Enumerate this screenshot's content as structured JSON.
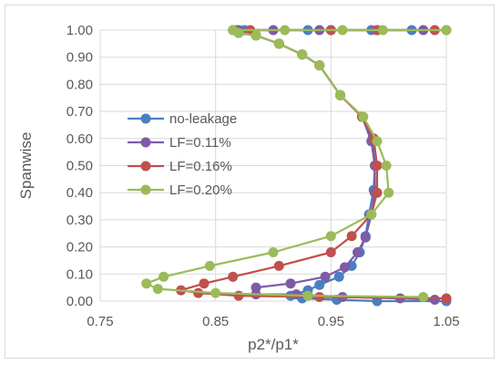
{
  "chart_data": {
    "type": "scatter",
    "title": "",
    "xlabel": "p2*/p1*",
    "ylabel": "Spanwise",
    "xlim": [
      0.75,
      1.05
    ],
    "ylim": [
      0.0,
      1.0
    ],
    "xticks": [
      "0.75",
      "0.85",
      "0.95",
      "1.05"
    ],
    "yticks": [
      "0.00",
      "0.10",
      "0.20",
      "0.30",
      "0.40",
      "0.50",
      "0.60",
      "0.70",
      "0.80",
      "0.90",
      "1.00"
    ],
    "grid": "horizontal and vertical",
    "legend_position": "center-left",
    "series": [
      {
        "name": "no-leakage",
        "color": "#4a7fc1",
        "points": [
          [
            1.05,
            0.0
          ],
          [
            0.99,
            0.0
          ],
          [
            0.955,
            0.005
          ],
          [
            0.925,
            0.01
          ],
          [
            0.915,
            0.02
          ],
          [
            0.93,
            0.04
          ],
          [
            0.94,
            0.06
          ],
          [
            0.957,
            0.09
          ],
          [
            0.968,
            0.13
          ],
          [
            0.975,
            0.18
          ],
          [
            0.98,
            0.24
          ],
          [
            0.983,
            0.32
          ],
          [
            0.987,
            0.41
          ],
          [
            0.988,
            0.5
          ],
          [
            0.986,
            0.6
          ],
          [
            0.977,
            0.68
          ],
          [
            0.958,
            0.76
          ],
          [
            0.94,
            0.87
          ],
          [
            0.925,
            0.91
          ],
          [
            0.905,
            0.95
          ],
          [
            0.885,
            0.98
          ],
          [
            0.87,
            0.99
          ],
          [
            0.868,
            1.0
          ],
          [
            0.875,
            1.0
          ],
          [
            0.93,
            1.0
          ],
          [
            0.95,
            1.0
          ],
          [
            0.985,
            1.0
          ],
          [
            1.02,
            1.0
          ],
          [
            1.05,
            1.0
          ]
        ]
      },
      {
        "name": "LF=0.11%",
        "color": "#7d5ba6",
        "points": [
          [
            1.04,
            0.005
          ],
          [
            1.01,
            0.01
          ],
          [
            0.96,
            0.015
          ],
          [
            0.92,
            0.025
          ],
          [
            0.885,
            0.025
          ],
          [
            0.885,
            0.05
          ],
          [
            0.915,
            0.065
          ],
          [
            0.945,
            0.09
          ],
          [
            0.962,
            0.125
          ],
          [
            0.973,
            0.18
          ],
          [
            0.98,
            0.235
          ],
          [
            0.985,
            0.32
          ],
          [
            0.988,
            0.4
          ],
          [
            0.988,
            0.5
          ],
          [
            0.985,
            0.59
          ],
          [
            0.977,
            0.68
          ],
          [
            0.958,
            0.76
          ],
          [
            0.94,
            0.87
          ],
          [
            0.925,
            0.91
          ],
          [
            0.905,
            0.95
          ],
          [
            0.885,
            0.98
          ],
          [
            0.87,
            0.99
          ],
          [
            0.87,
            1.0
          ],
          [
            0.9,
            1.0
          ],
          [
            0.94,
            1.0
          ],
          [
            0.99,
            1.0
          ],
          [
            1.03,
            1.0
          ]
        ]
      },
      {
        "name": "LF=0.16%",
        "color": "#c0504d",
        "points": [
          [
            1.05,
            0.01
          ],
          [
            0.94,
            0.015
          ],
          [
            0.87,
            0.02
          ],
          [
            0.835,
            0.03
          ],
          [
            0.82,
            0.04
          ],
          [
            0.84,
            0.065
          ],
          [
            0.865,
            0.09
          ],
          [
            0.905,
            0.13
          ],
          [
            0.95,
            0.18
          ],
          [
            0.968,
            0.24
          ],
          [
            0.985,
            0.32
          ],
          [
            0.99,
            0.4
          ],
          [
            0.99,
            0.5
          ],
          [
            0.987,
            0.6
          ],
          [
            0.977,
            0.68
          ],
          [
            0.958,
            0.76
          ],
          [
            0.94,
            0.87
          ],
          [
            0.925,
            0.91
          ],
          [
            0.905,
            0.95
          ],
          [
            0.885,
            0.98
          ],
          [
            0.87,
            0.99
          ],
          [
            0.865,
            1.0
          ],
          [
            0.88,
            1.0
          ],
          [
            0.95,
            1.0
          ],
          [
            0.99,
            1.0
          ],
          [
            1.04,
            1.0
          ]
        ]
      },
      {
        "name": "LF=0.20%",
        "color": "#9bbb59",
        "points": [
          [
            1.03,
            0.015
          ],
          [
            0.93,
            0.02
          ],
          [
            0.85,
            0.03
          ],
          [
            0.8,
            0.045
          ],
          [
            0.79,
            0.065
          ],
          [
            0.805,
            0.09
          ],
          [
            0.845,
            0.13
          ],
          [
            0.9,
            0.18
          ],
          [
            0.95,
            0.24
          ],
          [
            0.985,
            0.32
          ],
          [
            1.0,
            0.4
          ],
          [
            0.998,
            0.5
          ],
          [
            0.99,
            0.59
          ],
          [
            0.978,
            0.68
          ],
          [
            0.958,
            0.76
          ],
          [
            0.94,
            0.87
          ],
          [
            0.925,
            0.91
          ],
          [
            0.905,
            0.95
          ],
          [
            0.885,
            0.98
          ],
          [
            0.87,
            0.99
          ],
          [
            0.865,
            1.0
          ],
          [
            0.91,
            1.0
          ],
          [
            0.96,
            1.0
          ],
          [
            0.995,
            1.0
          ],
          [
            1.05,
            1.0
          ]
        ]
      }
    ]
  }
}
